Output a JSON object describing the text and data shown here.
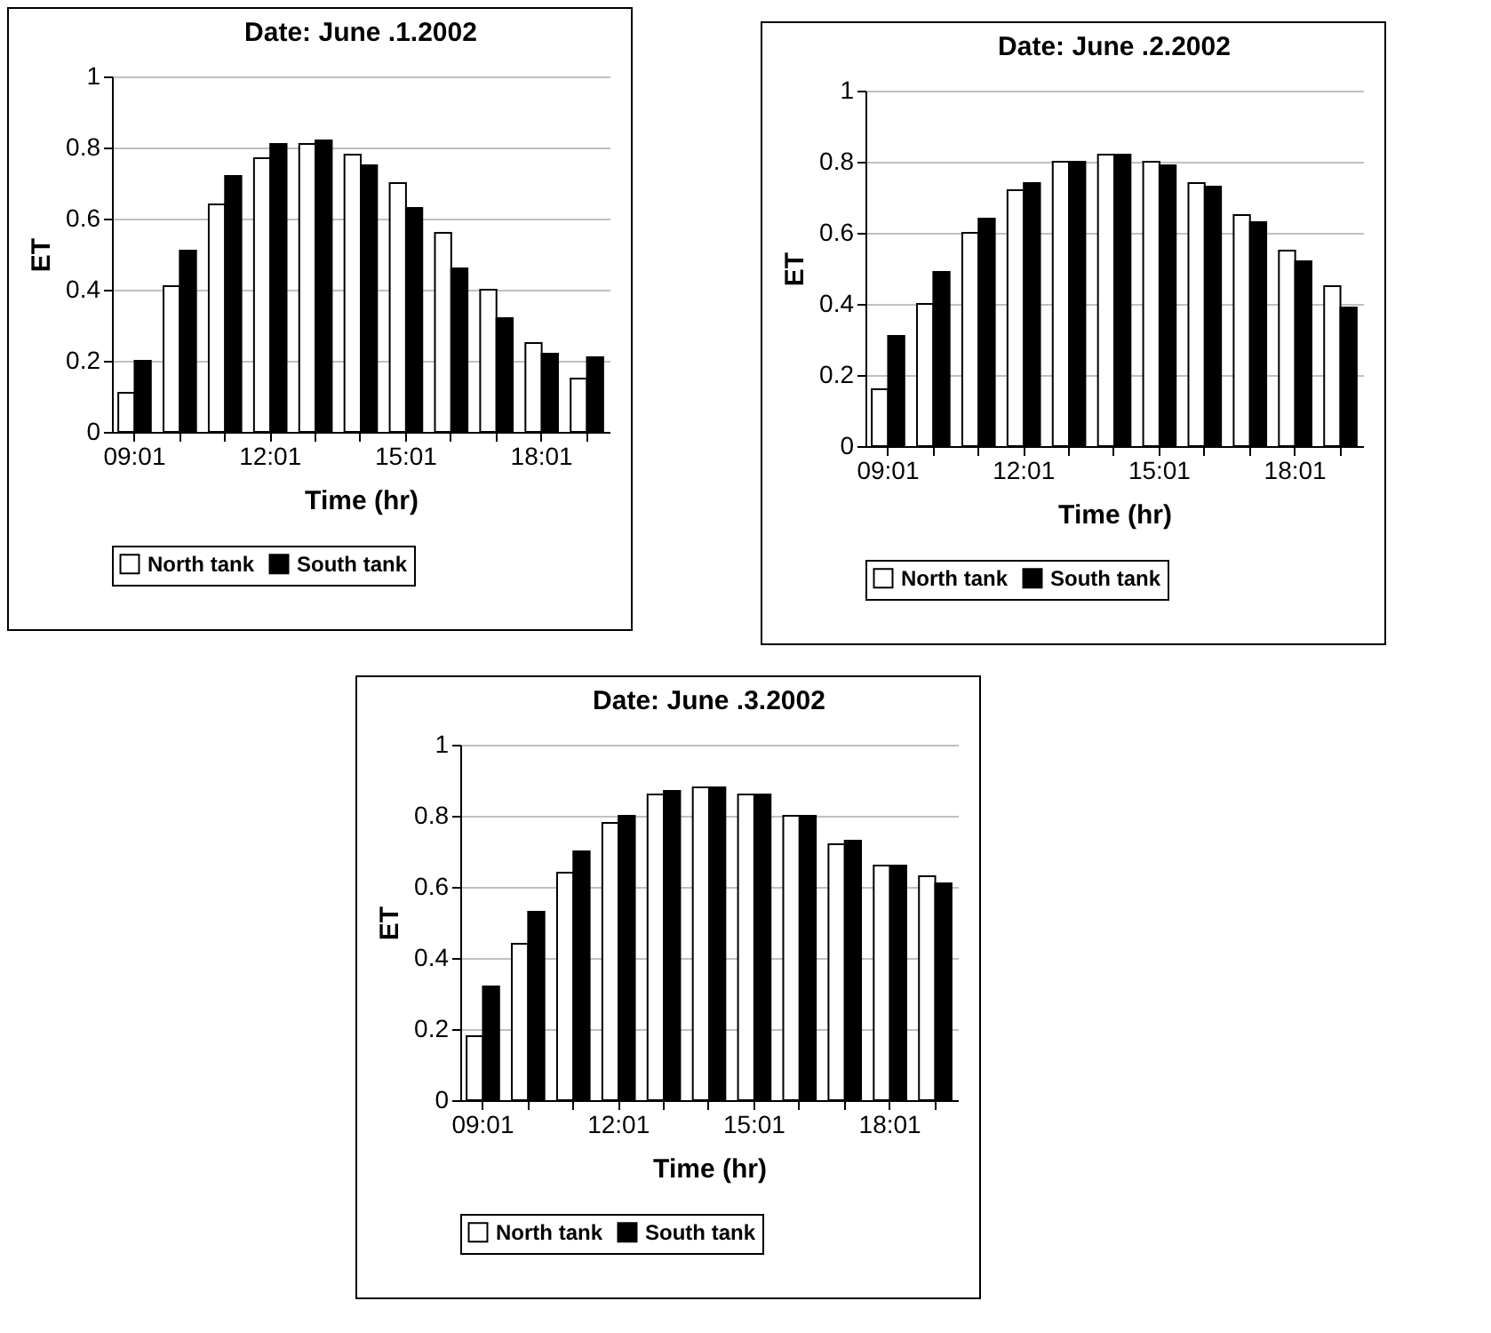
{
  "chart_data": [
    {
      "type": "bar",
      "title": "Date: June .1.2002",
      "xlabel": "Time  (hr)",
      "ylabel": "ET",
      "categories": [
        "09:01",
        null,
        null,
        "12:01",
        null,
        null,
        "15:01",
        null,
        null,
        "18:01",
        null
      ],
      "series": [
        {
          "name": "North tank",
          "color": "#ffffff",
          "values": [
            0.11,
            0.41,
            0.64,
            0.77,
            0.81,
            0.78,
            0.7,
            0.56,
            0.4,
            0.25,
            0.15
          ]
        },
        {
          "name": "South tank",
          "color": "#000000",
          "values": [
            0.2,
            0.51,
            0.72,
            0.81,
            0.82,
            0.75,
            0.63,
            0.46,
            0.32,
            0.22,
            0.21
          ]
        }
      ],
      "ylim": [
        0,
        1
      ],
      "yticks": [
        0,
        0.2,
        0.4,
        0.6,
        0.8,
        1
      ],
      "grid": "y",
      "legend": "bottom"
    },
    {
      "type": "bar",
      "title": "Date: June .2.2002",
      "xlabel": "Time  (hr)",
      "ylabel": "ET",
      "categories": [
        "09:01",
        null,
        null,
        "12:01",
        null,
        null,
        "15:01",
        null,
        null,
        "18:01",
        null
      ],
      "series": [
        {
          "name": "North tank",
          "color": "#ffffff",
          "values": [
            0.16,
            0.4,
            0.6,
            0.72,
            0.8,
            0.82,
            0.8,
            0.74,
            0.65,
            0.55,
            0.45
          ]
        },
        {
          "name": "South tank",
          "color": "#000000",
          "values": [
            0.31,
            0.49,
            0.64,
            0.74,
            0.8,
            0.82,
            0.79,
            0.73,
            0.63,
            0.52,
            0.39
          ]
        }
      ],
      "ylim": [
        0,
        1
      ],
      "yticks": [
        0,
        0.2,
        0.4,
        0.6,
        0.8,
        1
      ],
      "grid": "y",
      "legend": "bottom"
    },
    {
      "type": "bar",
      "title": "Date: June .3.2002",
      "xlabel": "Time  (hr)",
      "ylabel": "ET",
      "categories": [
        "09:01",
        null,
        null,
        "12:01",
        null,
        null,
        "15:01",
        null,
        null,
        "18:01",
        null
      ],
      "series": [
        {
          "name": "North tank",
          "color": "#ffffff",
          "values": [
            0.18,
            0.44,
            0.64,
            0.78,
            0.86,
            0.88,
            0.86,
            0.8,
            0.72,
            0.66,
            0.63
          ]
        },
        {
          "name": "South tank",
          "color": "#000000",
          "values": [
            0.32,
            0.53,
            0.7,
            0.8,
            0.87,
            0.88,
            0.86,
            0.8,
            0.73,
            0.66,
            0.61
          ]
        }
      ],
      "ylim": [
        0,
        1
      ],
      "yticks": [
        0,
        0.2,
        0.4,
        0.6,
        0.8,
        1
      ],
      "grid": "y",
      "legend": "bottom"
    }
  ]
}
